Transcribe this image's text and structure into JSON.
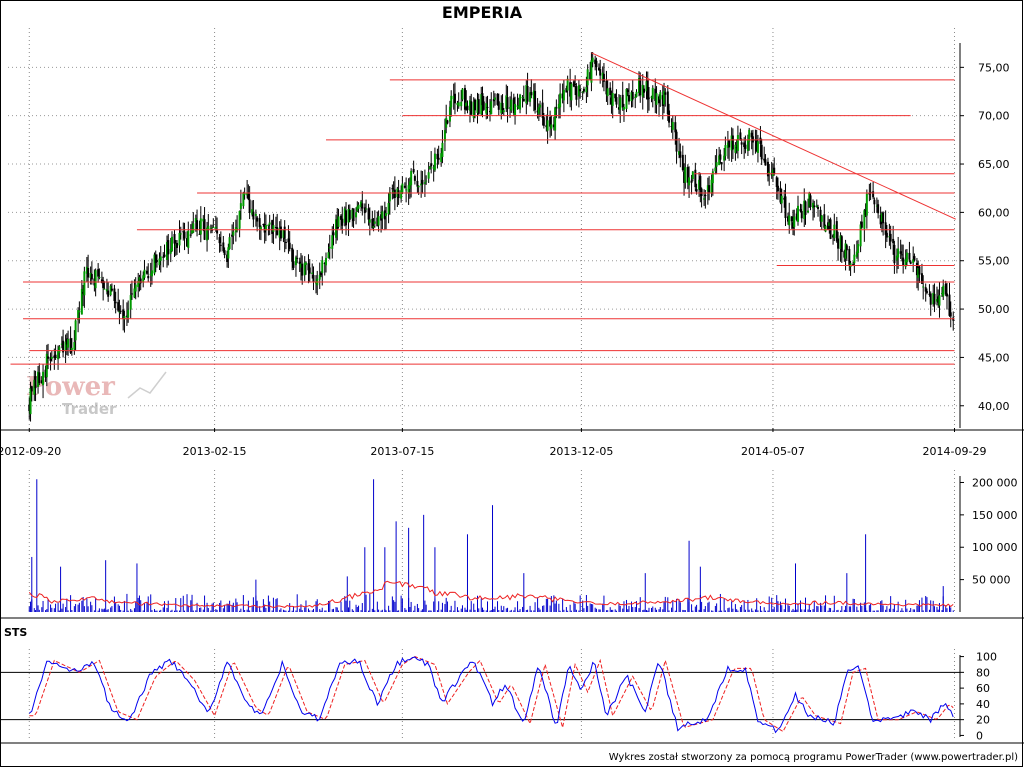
{
  "chart_data": [
    {
      "type": "candlestick",
      "title": "EMPERIA",
      "x_ticks": [
        "2012-09-20",
        "2013-02-15",
        "2013-07-15",
        "2013-12-05",
        "2014-05-07",
        "2014-09-29"
      ],
      "y_ticks": [
        "75,00",
        "70,00",
        "65,00",
        "60,00",
        "55,00",
        "50,00",
        "45,00",
        "40,00"
      ],
      "ylim": [
        37.7,
        77
      ],
      "grid": true,
      "price_path": [
        [
          "2012-09-20",
          40.5
        ],
        [
          "2012-10-05",
          44.5
        ],
        [
          "2012-10-25",
          46.5
        ],
        [
          "2012-11-05",
          53.5
        ],
        [
          "2012-11-20",
          53
        ],
        [
          "2012-12-05",
          49.5
        ],
        [
          "2012-12-20",
          53
        ],
        [
          "2013-01-05",
          56
        ],
        [
          "2013-01-20",
          57
        ],
        [
          "2013-02-01",
          58.5
        ],
        [
          "2013-02-15",
          58
        ],
        [
          "2013-02-25",
          55
        ],
        [
          "2013-03-10",
          61.5
        ],
        [
          "2013-03-25",
          58.5
        ],
        [
          "2013-04-10",
          57.5
        ],
        [
          "2013-04-25",
          54
        ],
        [
          "2013-05-10",
          53.5
        ],
        [
          "2013-05-25",
          59
        ],
        [
          "2013-06-10",
          60.5
        ],
        [
          "2013-06-25",
          59
        ],
        [
          "2013-07-15",
          63
        ],
        [
          "2013-08-01",
          63.5
        ],
        [
          "2013-08-15",
          66
        ],
        [
          "2013-08-25",
          72.5
        ],
        [
          "2013-09-10",
          71
        ],
        [
          "2013-09-25",
          71.5
        ],
        [
          "2013-10-10",
          71
        ],
        [
          "2013-10-25",
          72.5
        ],
        [
          "2013-11-10",
          69
        ],
        [
          "2013-11-25",
          73
        ],
        [
          "2013-12-05",
          72
        ],
        [
          "2013-12-15",
          75.5
        ],
        [
          "2014-01-01",
          71
        ],
        [
          "2014-01-20",
          73
        ],
        [
          "2014-02-10",
          72
        ],
        [
          "2014-02-25",
          64
        ],
        [
          "2014-03-15",
          62
        ],
        [
          "2014-04-01",
          67
        ],
        [
          "2014-04-20",
          67.5
        ],
        [
          "2014-05-07",
          64
        ],
        [
          "2014-05-20",
          59
        ],
        [
          "2014-06-05",
          61
        ],
        [
          "2014-06-25",
          58
        ],
        [
          "2014-07-10",
          55
        ],
        [
          "2014-07-25",
          62.5
        ],
        [
          "2014-08-10",
          56
        ],
        [
          "2014-08-25",
          55
        ],
        [
          "2014-09-10",
          51
        ],
        [
          "2014-09-20",
          51.5
        ],
        [
          "2014-09-29",
          49.5
        ]
      ],
      "horizontal_lines": [
        {
          "value": 73.7,
          "from": "2013-07-05",
          "to": "2014-09-29"
        },
        {
          "value": 70.0,
          "from": "2013-07-15",
          "to": "2014-08-25"
        },
        {
          "value": 67.5,
          "from": "2013-05-15",
          "to": "2014-09-29"
        },
        {
          "value": 64.0,
          "from": "2014-03-05",
          "to": "2014-09-29"
        },
        {
          "value": 62.0,
          "from": "2013-02-01",
          "to": "2014-09-29"
        },
        {
          "value": 58.2,
          "from": "2012-12-15",
          "to": "2014-09-29"
        },
        {
          "value": 54.5,
          "from": "2014-05-10",
          "to": "2014-09-29"
        },
        {
          "value": 52.8,
          "from": "2012-09-15",
          "to": "2014-09-29"
        },
        {
          "value": 49.0,
          "from": "2012-09-15",
          "to": "2014-09-29"
        },
        {
          "value": 45.7,
          "from": "2012-09-20",
          "to": "2014-09-29"
        },
        {
          "value": 44.3,
          "from": "2012-09-05",
          "to": "2014-09-29"
        }
      ],
      "trend_line": {
        "from": [
          "2013-12-13",
          76.5
        ],
        "to": [
          "2014-09-30",
          59.3
        ]
      },
      "colors": {
        "up": "#009900",
        "down": "#000000",
        "levels": "#ee3333",
        "trend": "#ee3333"
      }
    },
    {
      "type": "bar",
      "name": "volume",
      "y_ticks": [
        "200 000",
        "150 000",
        "100 000",
        "50 000"
      ],
      "ylim": [
        0,
        210000
      ],
      "spikes": [
        [
          "2012-09-26",
          205000
        ],
        [
          "2012-09-22",
          85000
        ],
        [
          "2012-10-15",
          70000
        ],
        [
          "2012-11-20",
          80000
        ],
        [
          "2012-12-15",
          75000
        ],
        [
          "2013-03-20",
          50000
        ],
        [
          "2013-06-01",
          55000
        ],
        [
          "2013-06-15",
          100000
        ],
        [
          "2013-06-22",
          205000
        ],
        [
          "2013-07-01",
          100000
        ],
        [
          "2013-07-10",
          140000
        ],
        [
          "2013-07-20",
          130000
        ],
        [
          "2013-08-01",
          150000
        ],
        [
          "2013-08-10",
          100000
        ],
        [
          "2013-09-05",
          120000
        ],
        [
          "2013-09-25",
          165000
        ],
        [
          "2013-10-20",
          60000
        ],
        [
          "2014-01-25",
          60000
        ],
        [
          "2014-03-01",
          110000
        ],
        [
          "2014-03-10",
          70000
        ],
        [
          "2014-05-25",
          75000
        ],
        [
          "2014-07-05",
          60000
        ],
        [
          "2014-07-20",
          120000
        ],
        [
          "2014-09-20",
          40000
        ]
      ],
      "moving_average": [
        [
          "2012-09-20",
          30000
        ],
        [
          "2012-10-10",
          15000
        ],
        [
          "2012-11-01",
          22000
        ],
        [
          "2012-12-01",
          15000
        ],
        [
          "2013-01-20",
          10000
        ],
        [
          "2013-03-01",
          10000
        ],
        [
          "2013-05-01",
          8000
        ],
        [
          "2013-06-20",
          30000
        ],
        [
          "2013-07-10",
          45000
        ],
        [
          "2013-08-10",
          30000
        ],
        [
          "2013-09-20",
          20000
        ],
        [
          "2013-10-20",
          25000
        ],
        [
          "2013-11-20",
          18000
        ],
        [
          "2013-12-20",
          12000
        ],
        [
          "2014-02-01",
          15000
        ],
        [
          "2014-03-20",
          22000
        ],
        [
          "2014-05-07",
          12000
        ],
        [
          "2014-06-20",
          15000
        ],
        [
          "2014-08-01",
          12000
        ],
        [
          "2014-09-29",
          10000
        ]
      ],
      "colors": {
        "bars": "#0000cc",
        "average": "#ee2222"
      }
    },
    {
      "type": "line",
      "name": "STS",
      "label": "STS",
      "y_ticks": [
        "100",
        "80",
        "60",
        "40",
        "20",
        "0"
      ],
      "ylim": [
        -2,
        102
      ],
      "ref_lines": [
        80,
        20
      ],
      "k": [
        [
          "2012-09-20",
          25
        ],
        [
          "2012-10-05",
          95
        ],
        [
          "2012-10-25",
          80
        ],
        [
          "2012-11-10",
          95
        ],
        [
          "2012-11-25",
          30
        ],
        [
          "2012-12-10",
          20
        ],
        [
          "2012-12-25",
          75
        ],
        [
          "2013-01-10",
          95
        ],
        [
          "2013-01-25",
          70
        ],
        [
          "2013-02-10",
          25
        ],
        [
          "2013-02-25",
          95
        ],
        [
          "2013-03-15",
          35
        ],
        [
          "2013-03-25",
          25
        ],
        [
          "2013-04-10",
          90
        ],
        [
          "2013-04-25",
          30
        ],
        [
          "2013-05-10",
          20
        ],
        [
          "2013-05-25",
          90
        ],
        [
          "2013-06-10",
          95
        ],
        [
          "2013-06-25",
          40
        ],
        [
          "2013-07-10",
          90
        ],
        [
          "2013-07-20",
          100
        ],
        [
          "2013-08-05",
          90
        ],
        [
          "2013-08-15",
          40
        ],
        [
          "2013-09-01",
          80
        ],
        [
          "2013-09-10",
          95
        ],
        [
          "2013-09-25",
          40
        ],
        [
          "2013-10-05",
          65
        ],
        [
          "2013-10-20",
          15
        ],
        [
          "2013-11-01",
          90
        ],
        [
          "2013-11-15",
          10
        ],
        [
          "2013-11-25",
          90
        ],
        [
          "2013-12-05",
          55
        ],
        [
          "2013-12-15",
          95
        ],
        [
          "2013-12-25",
          25
        ],
        [
          "2014-01-10",
          75
        ],
        [
          "2014-01-25",
          30
        ],
        [
          "2014-02-05",
          95
        ],
        [
          "2014-02-20",
          10
        ],
        [
          "2014-03-15",
          20
        ],
        [
          "2014-04-01",
          85
        ],
        [
          "2014-04-15",
          85
        ],
        [
          "2014-04-25",
          20
        ],
        [
          "2014-05-10",
          5
        ],
        [
          "2014-05-25",
          50
        ],
        [
          "2014-06-05",
          25
        ],
        [
          "2014-06-25",
          15
        ],
        [
          "2014-07-05",
          80
        ],
        [
          "2014-07-15",
          85
        ],
        [
          "2014-07-25",
          20
        ],
        [
          "2014-08-10",
          20
        ],
        [
          "2014-08-25",
          30
        ],
        [
          "2014-09-10",
          20
        ],
        [
          "2014-09-20",
          40
        ],
        [
          "2014-09-29",
          25
        ]
      ],
      "colors": {
        "k": "#0000ee",
        "d": "#ee2222"
      }
    }
  ],
  "footer": {
    "text": "Wykres został stworzony za pomocą programu PowerTrader (www.powertrader.pl)"
  },
  "watermark": {
    "line1": "Power",
    "line2": "Trader"
  }
}
